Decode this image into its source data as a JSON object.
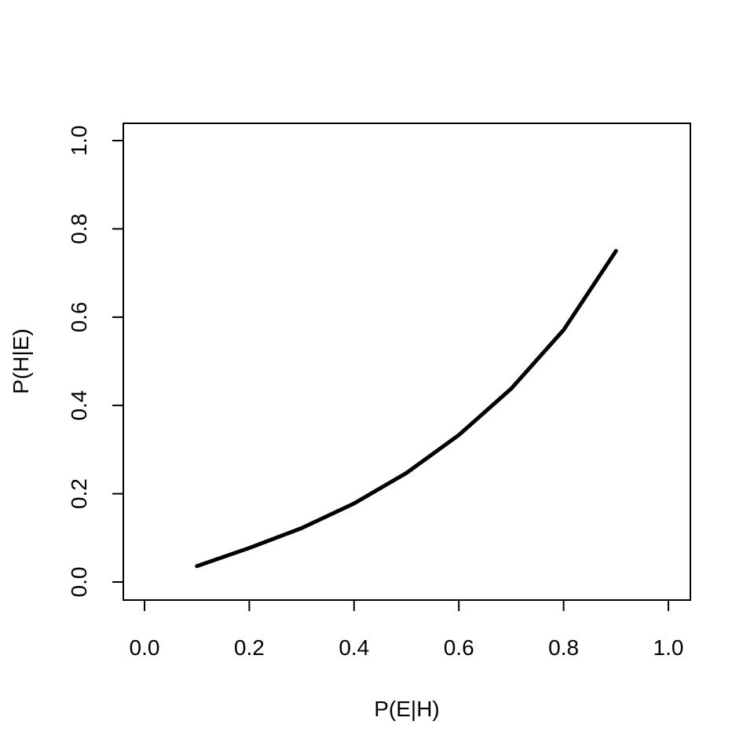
{
  "chart_data": {
    "type": "line",
    "title": "",
    "xlabel": "P(E|H)",
    "ylabel": "P(H|E)",
    "xlim": [
      0.0,
      1.0
    ],
    "ylim": [
      0.0,
      1.0
    ],
    "xticks": [
      "0.0",
      "0.2",
      "0.4",
      "0.6",
      "0.8",
      "1.0"
    ],
    "yticks": [
      "0.0",
      "0.2",
      "0.4",
      "0.6",
      "0.8",
      "1.0"
    ],
    "grid": false,
    "series": [
      {
        "color": "#000000",
        "x": [
          0.1,
          0.2,
          0.3,
          0.4,
          0.5,
          0.6,
          0.7,
          0.8,
          0.9
        ],
        "y": [
          0.036,
          0.077,
          0.122,
          0.178,
          0.247,
          0.333,
          0.438,
          0.571,
          0.75
        ]
      }
    ]
  }
}
